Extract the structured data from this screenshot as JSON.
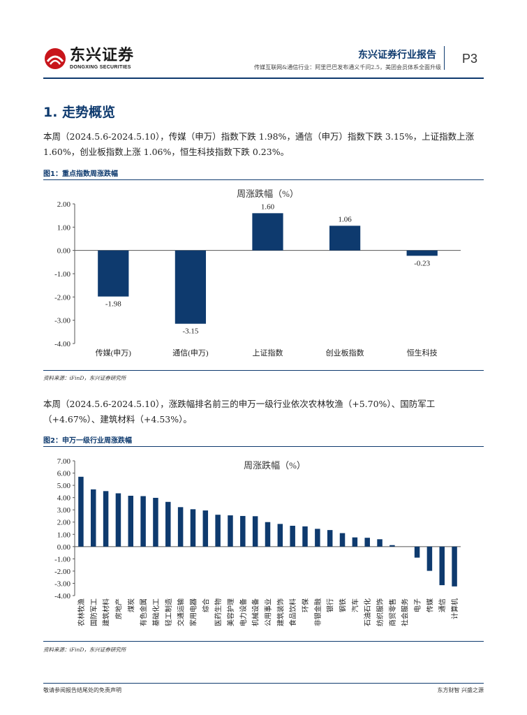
{
  "header": {
    "logo_cn": "东兴证券",
    "logo_en": "DONGXING SECURITIES",
    "report_title": "东兴证券行业报告",
    "subtitle": "传媒互联网&通信行业：阿里巴巴发布通义千问2.5，美团会员体系全面升级",
    "page": "P3"
  },
  "section": {
    "title": "1. 走势概览"
  },
  "para1": "本周（2024.5.6-2024.5.10），传媒（申万）指数下跌 1.98%，通信（申万）指数下跌 3.15%，上证指数上涨 1.60%，创业板指数上涨 1.06%，恒生科技指数下跌 0.23%。",
  "fig1": {
    "caption": "图1：重点指数周涨跌幅",
    "source": "资料来源：iFinD，东兴证券研究所"
  },
  "para2": "本周（2024.5.6-2024.5.10），涨跌幅排名前三的申万一级行业依次农林牧渔（+5.70%）、国防军工（+4.67%）、建筑材料（+4.53%）。",
  "fig2": {
    "caption": "图2：申万一级行业周涨跌幅",
    "source": "资料来源：iFinD，东兴证券研究所"
  },
  "footer": {
    "left": "敬请参阅报告结尾处的免责声明",
    "right": "东方财智  兴盛之源"
  },
  "colors": {
    "bar": "#0e3a6e",
    "accent": "#0e3a6e",
    "logo_red": "#c8151b"
  },
  "chart_data": [
    {
      "type": "bar",
      "title": "周涨跌幅（%）",
      "categories": [
        "传媒(申万)",
        "通信(申万)",
        "上证指数",
        "创业板指数",
        "恒生科技"
      ],
      "values": [
        -1.98,
        -3.15,
        1.6,
        1.06,
        -0.23
      ],
      "value_labels": [
        "-1.98",
        "-3.15",
        "1.60",
        "1.06",
        "-0.23"
      ],
      "yticks": [
        "2.00",
        "1.00",
        "0.00",
        "-1.00",
        "-2.00",
        "-3.00",
        "-4.00"
      ],
      "ylim": [
        -4,
        2
      ],
      "xlabel": "",
      "ylabel": ""
    },
    {
      "type": "bar",
      "title": "周涨跌幅（%）",
      "categories": [
        "农林牧渔",
        "国防军工",
        "建筑材料",
        "房地产",
        "煤炭",
        "有色金属",
        "基础化工",
        "轻工制造",
        "交通运输",
        "家用电器",
        "综合",
        "医药生物",
        "美容护理",
        "电力设备",
        "机械设备",
        "公用事业",
        "建筑装饰",
        "食品饮料",
        "环保",
        "非银金融",
        "银行",
        "钢铁",
        "汽车",
        "石油石化",
        "纺织服饰",
        "商贸零售",
        "社会服务",
        "电子",
        "传媒",
        "通信",
        "计算机"
      ],
      "values": [
        5.7,
        4.67,
        4.53,
        4.35,
        4.15,
        4.12,
        3.98,
        3.65,
        3.22,
        3.05,
        2.95,
        2.6,
        2.55,
        2.5,
        2.48,
        2.0,
        1.85,
        1.7,
        1.65,
        1.45,
        1.35,
        1.1,
        0.75,
        0.72,
        0.6,
        0.12,
        0.0,
        -0.9,
        -1.98,
        -3.15,
        -3.25
      ],
      "yticks": [
        "7.00",
        "6.00",
        "5.00",
        "4.00",
        "3.00",
        "2.00",
        "1.00",
        "0.00",
        "-1.00",
        "-2.00",
        "-3.00",
        "-4.00"
      ],
      "ylim": [
        -4,
        7
      ],
      "xlabel": "",
      "ylabel": ""
    }
  ]
}
